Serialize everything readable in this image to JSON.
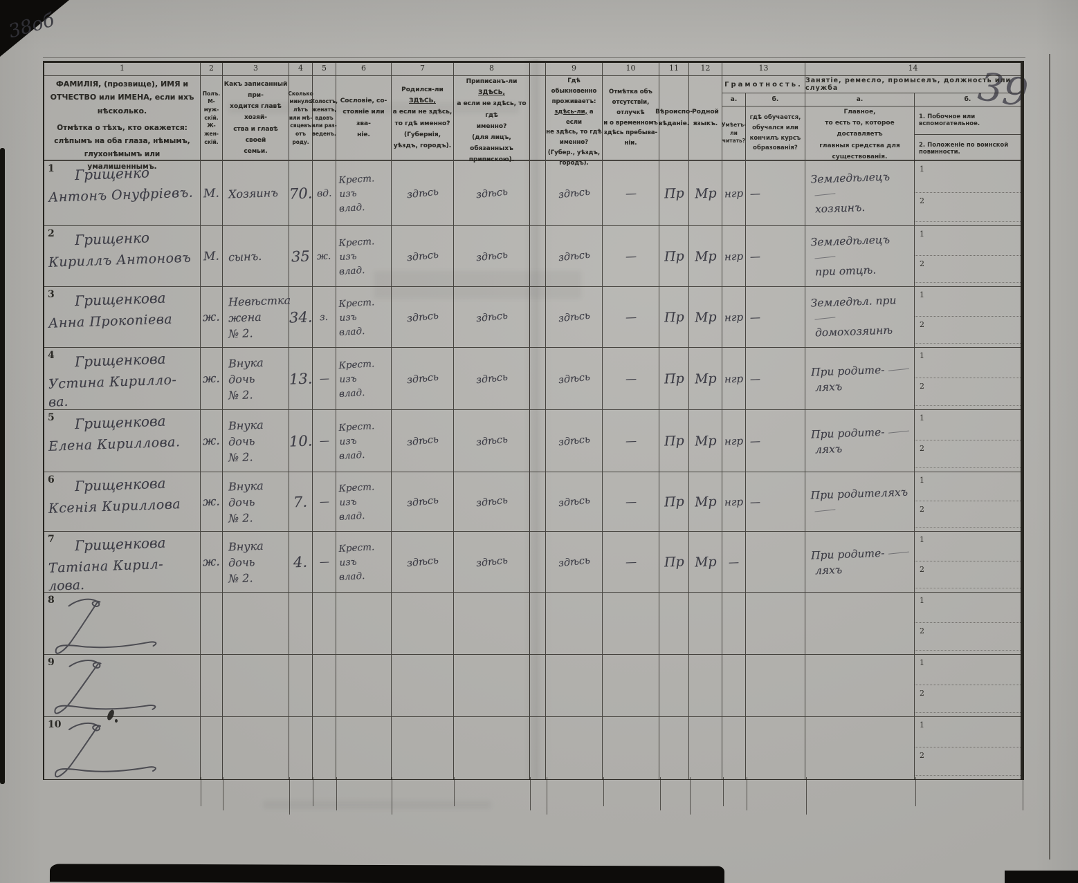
{
  "page": {
    "corner_note": "38об",
    "sheet_number": "39"
  },
  "table": {
    "row_sub_labels": {
      "one": "1",
      "two": "2"
    },
    "header": {
      "c1": {
        "num": "1",
        "main": "ФАМИЛІЯ, (прозвище), ИМЯ и ОТЧЕСТВО или ИМЕНА, если ихъ нѣсколько.",
        "note": "Отмѣтка о тѣхъ, кто окажется: слѣпымъ на оба глаза, нѣмымъ, глухонѣмымъ или умалишеннымъ."
      },
      "c2": {
        "num": "2",
        "text": "Полъ.\nМ-муж-\nскій.\nЖ-жен-\nскій."
      },
      "c3": {
        "num": "3",
        "text": "Какъ записанный при-\nходится главѣ хозяй-\nства и главѣ своей\nсемьи."
      },
      "c4": {
        "num": "4",
        "text": "Сколько\nминуло\nлѣтъ\nили мѣ-\nсяцевъ\nотъ роду."
      },
      "c5": {
        "num": "5",
        "text": "Холостъ,\nженатъ,\nвдовъ\nили раз-\nведенъ."
      },
      "c6": {
        "num": "6",
        "text": "Сословіе, со-\nстояніе или зва-\nніе."
      },
      "c7": {
        "num": "7",
        "l1a": "Родился-ли ",
        "l1b": "ЗДѢСЬ,",
        "rest": "а если не здѣсь,\nто гдѣ именно?\n(Губернія, уѣздъ, городъ)."
      },
      "c8": {
        "num": "8",
        "l1a": "Приписанъ-ли ",
        "l1b": "ЗДѢСЬ,",
        "rest": "а если не здѣсь, то гдѣ\nименно?\n(для лицъ, обязанныхъ\nприпискою)."
      },
      "c9": {
        "num": "9",
        "top": "Гдѣ обыкновенно\nпроживаетъ:",
        "ua": "здѣсь-ли,",
        "ub": " а если",
        "rest": "не здѣсь, то гдѣ\nименно?\n(Губер., уѣздъ, городъ)."
      },
      "c10": {
        "num": "10",
        "text": "Отмѣтка объ\nотсутствіи, отлучкѣ\nи о временномъ\nздѣсь пребыва-\nніи."
      },
      "c11": {
        "num": "11",
        "text": "Вѣроиспо-\nвѣданіе."
      },
      "c12": {
        "num": "12",
        "text": "Родной\nязыкъ."
      },
      "c13": {
        "num": "13",
        "title": "Грамотность.",
        "a": "а.",
        "b": "б.",
        "a_desc": "Умѣетъ-\nли\nчитать?",
        "b_desc": "гдѣ обучается,\nобучался или\nкончилъ курсъ\nобразованія?"
      },
      "c14": {
        "num": "14",
        "title": "Занятіе, ремесло, промыселъ, должность или служба",
        "a": "а.",
        "b": "б.",
        "a_desc": "Главное,\nто есть то, которое доставляетъ\nглавныя средства для существованія.",
        "b_line1": "1.  Побочное или вспомогательное.",
        "b_line2": "2.  Положеніе по воинской повинности."
      }
    },
    "rows": [
      {
        "n": "1",
        "name": [
          "Грищенко",
          "Антонъ Онуфріевъ."
        ],
        "sex": "М.",
        "relation": [
          "Хозяинъ"
        ],
        "age": "70.",
        "marital": "вд.",
        "estate": [
          "Крест. изъ",
          "влад."
        ],
        "born": "здѣсь",
        "registered": "здѣсь",
        "resides": "здѣсь",
        "absence": "—",
        "religion": "Пр",
        "language": "Мр",
        "reads": "нгр",
        "education": "—",
        "occupation": [
          "Земледѣлецъ",
          "хозяинъ."
        ]
      },
      {
        "n": "2",
        "name": [
          "Грищенко",
          "Кириллъ Антоновъ"
        ],
        "sex": "М.",
        "relation": [
          "сынъ."
        ],
        "age": "35",
        "marital": "ж.",
        "estate": [
          "Крест. изъ",
          "влад."
        ],
        "born": "здѣсь",
        "registered": "здѣсь",
        "resides": "здѣсь",
        "absence": "—",
        "religion": "Пр",
        "language": "Мр",
        "reads": "нгр",
        "education": "—",
        "occupation": [
          "Земледѣлецъ",
          "при отцѣ."
        ]
      },
      {
        "n": "3",
        "name": [
          "Грищенкова",
          "Анна Прокопіева"
        ],
        "sex": "ж.",
        "relation": [
          "Невѣстка",
          "жена",
          "№ 2."
        ],
        "age": "34.",
        "marital": "з.",
        "estate": [
          "Крест. изъ",
          "влад."
        ],
        "born": "здѣсь",
        "registered": "здѣсь",
        "resides": "здѣсь",
        "absence": "—",
        "religion": "Пр",
        "language": "Мр",
        "reads": "нгр",
        "education": "—",
        "occupation": [
          "Земледѣл. при",
          "домохозяинѣ"
        ]
      },
      {
        "n": "4",
        "name": [
          "Грищенкова",
          "Устина Кирилло-",
          "ва."
        ],
        "sex": "ж.",
        "relation": [
          "Внука",
          "дочь",
          "№ 2."
        ],
        "age": "13.",
        "marital": "—",
        "estate": [
          "Крест. изъ",
          "влад."
        ],
        "born": "здѣсь",
        "registered": "здѣсь",
        "resides": "здѣсь",
        "absence": "—",
        "religion": "Пр",
        "language": "Мр",
        "reads": "нгр",
        "education": "—",
        "occupation": [
          "При родите-",
          "ляхъ"
        ]
      },
      {
        "n": "5",
        "name": [
          "Грищенкова",
          "Елена Кириллова."
        ],
        "sex": "ж.",
        "relation": [
          "Внука",
          "дочь",
          "№ 2."
        ],
        "age": "10.",
        "marital": "—",
        "estate": [
          "Крест. изъ",
          "влад."
        ],
        "born": "здѣсь",
        "registered": "здѣсь",
        "resides": "здѣсь",
        "absence": "—",
        "religion": "Пр",
        "language": "Мр",
        "reads": "нгр",
        "education": "—",
        "occupation": [
          "При родите-",
          "ляхъ"
        ]
      },
      {
        "n": "6",
        "name": [
          "Грищенкова",
          "Ксенія Кириллова"
        ],
        "sex": "ж.",
        "relation": [
          "Внука",
          "дочь",
          "№ 2."
        ],
        "age": "7.",
        "marital": "—",
        "estate": [
          "Крест. изъ",
          "влад."
        ],
        "born": "здѣсь",
        "registered": "здѣсь",
        "resides": "здѣсь",
        "absence": "—",
        "religion": "Пр",
        "language": "Мр",
        "reads": "нгр",
        "education": "—",
        "occupation": [
          "При родителяхъ"
        ]
      },
      {
        "n": "7",
        "name": [
          "Грищенкова",
          "Татіана Кирил-",
          "лова."
        ],
        "sex": "ж.",
        "relation": [
          "Внука",
          "дочь",
          "№ 2."
        ],
        "age": "4.",
        "marital": "—",
        "estate": [
          "Крест. изъ",
          "влад."
        ],
        "born": "здѣсь",
        "registered": "здѣсь",
        "resides": "здѣсь",
        "absence": "—",
        "religion": "Пр",
        "language": "Мр",
        "reads": "—",
        "education": "",
        "occupation": [
          "При родите-",
          "ляхъ"
        ]
      },
      {
        "n": "8",
        "crossed": true
      },
      {
        "n": "9",
        "crossed": true
      },
      {
        "n": "10",
        "crossed": true
      }
    ]
  }
}
